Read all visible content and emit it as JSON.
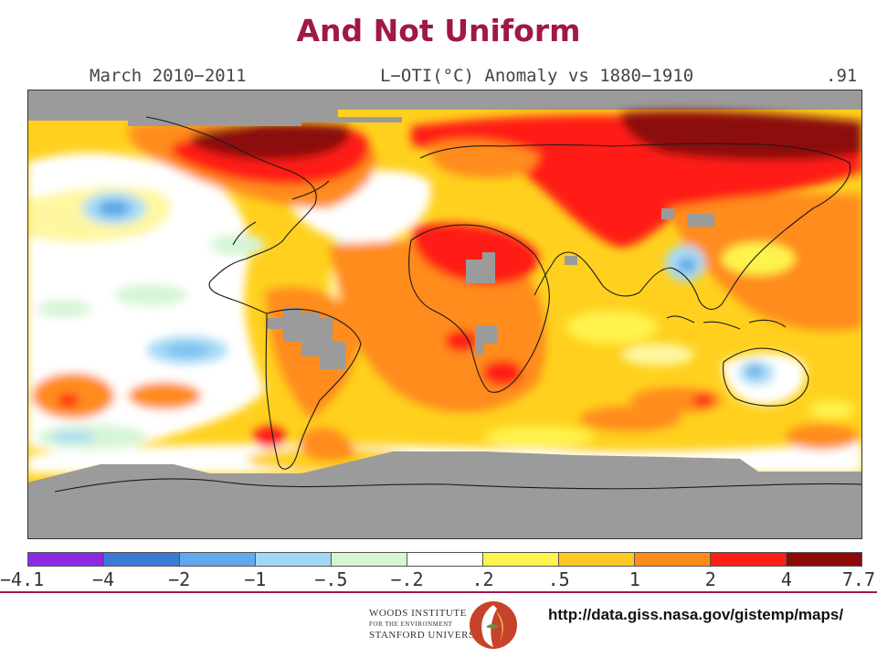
{
  "slide": {
    "title": "And Not Uniform"
  },
  "map": {
    "period": "March 2010−2011",
    "metric": "L−OTI(°C) Anomaly vs 1880−1910",
    "global_mean": ".91",
    "missing_data_color": "#9b9b9b",
    "continent_outline_color": "#1a1a1a"
  },
  "legend": {
    "ticks": [
      "−4.1",
      "−4",
      "−2",
      "−1",
      "−.5",
      "−.2",
      ".2",
      ".5",
      "1",
      "2",
      "4",
      "7.7"
    ],
    "colors": [
      "#8a2be2",
      "#3a7bd5",
      "#62a8ec",
      "#9fd8f5",
      "#d6f5d6",
      "#ffffff",
      "#fff34d",
      "#ffc823",
      "#ff8c1a",
      "#ff1e14",
      "#8c0a0a"
    ]
  },
  "footer": {
    "institute_line1": "WOODS INSTITUTE",
    "institute_line2": "FOR THE ENVIRONMENT",
    "institute_line3": "STANFORD UNIVERSITY",
    "source_url": "http://data.giss.nasa.gov/gistemp/maps/"
  }
}
